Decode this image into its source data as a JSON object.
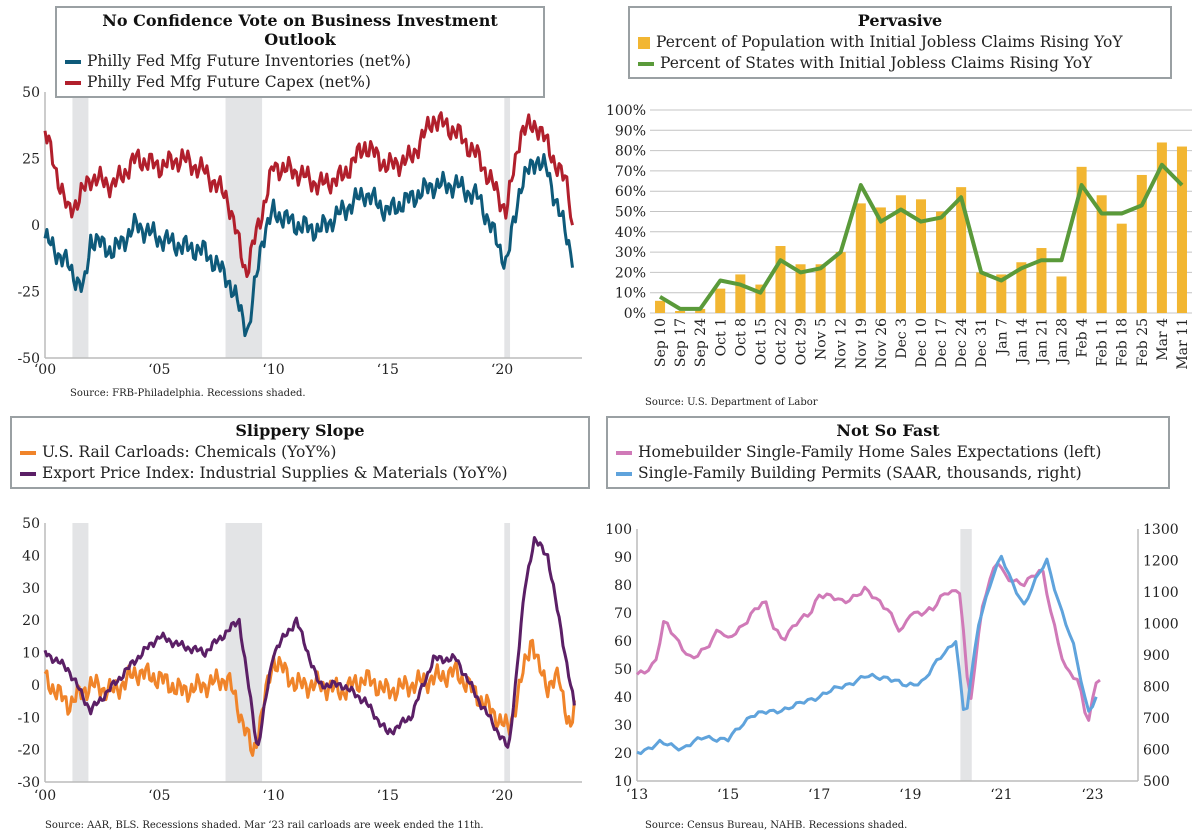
{
  "chart_data": [
    {
      "type": "line",
      "title": "No Confidence Vote on Business Investment Outlook",
      "source": "Source: FRB-Philadelphia. Recessions shaded.",
      "xlim": [
        2000,
        2023.5
      ],
      "ylim": [
        -50,
        50
      ],
      "yticks": [
        -50,
        -25,
        0,
        25,
        50
      ],
      "xticks": [
        {
          "v": 2000,
          "l": "‘00"
        },
        {
          "v": 2005,
          "l": "‘05"
        },
        {
          "v": 2010,
          "l": "‘10"
        },
        {
          "v": 2015,
          "l": "‘15"
        },
        {
          "v": 2020,
          "l": "‘20"
        }
      ],
      "recessions": [
        [
          2001.2,
          2001.9
        ],
        [
          2007.9,
          2009.5
        ],
        [
          2020.1,
          2020.35
        ]
      ],
      "series": [
        {
          "name": "Philly Fed Mfg Future Inventories (net%)",
          "color": "#0e5a7a",
          "noise": 5,
          "points": [
            [
              2000,
              -5
            ],
            [
              2001,
              -15
            ],
            [
              2001.7,
              -25
            ],
            [
              2002,
              -5
            ],
            [
              2003,
              -10
            ],
            [
              2004,
              0
            ],
            [
              2005,
              -5
            ],
            [
              2006,
              -8
            ],
            [
              2007,
              -10
            ],
            [
              2008,
              -20
            ],
            [
              2008.9,
              -40
            ],
            [
              2009.5,
              -5
            ],
            [
              2010,
              5
            ],
            [
              2011,
              0
            ],
            [
              2012,
              -2
            ],
            [
              2013,
              5
            ],
            [
              2014,
              12
            ],
            [
              2015,
              5
            ],
            [
              2016,
              10
            ],
            [
              2017,
              15
            ],
            [
              2018,
              15
            ],
            [
              2019,
              10
            ],
            [
              2020.2,
              -15
            ],
            [
              2020.8,
              15
            ],
            [
              2021.5,
              25
            ],
            [
              2022,
              20
            ],
            [
              2022.5,
              5
            ],
            [
              2023.1,
              -12
            ]
          ]
        },
        {
          "name": "Philly Fed Mfg Future Capex (net%)",
          "color": "#b11f2c",
          "noise": 5,
          "points": [
            [
              2000,
              35
            ],
            [
              2000.5,
              20
            ],
            [
              2001,
              5
            ],
            [
              2001.5,
              10
            ],
            [
              2002,
              18
            ],
            [
              2003,
              15
            ],
            [
              2004,
              25
            ],
            [
              2005,
              22
            ],
            [
              2006,
              25
            ],
            [
              2007,
              20
            ],
            [
              2008,
              10
            ],
            [
              2008.8,
              -18
            ],
            [
              2009.5,
              5
            ],
            [
              2010,
              22
            ],
            [
              2011,
              20
            ],
            [
              2012,
              15
            ],
            [
              2013,
              18
            ],
            [
              2014,
              30
            ],
            [
              2015,
              22
            ],
            [
              2016,
              25
            ],
            [
              2017,
              40
            ],
            [
              2018,
              35
            ],
            [
              2019,
              25
            ],
            [
              2020.2,
              5
            ],
            [
              2020.8,
              35
            ],
            [
              2021.5,
              38
            ],
            [
              2022,
              30
            ],
            [
              2022.5,
              20
            ],
            [
              2022.9,
              15
            ],
            [
              2023.1,
              -3
            ]
          ]
        }
      ]
    },
    {
      "type": "bar",
      "title": "Pervasive",
      "source": "Source: U.S. Department of Labor",
      "ylim": [
        0,
        100
      ],
      "yticks": [
        0,
        10,
        20,
        30,
        40,
        50,
        60,
        70,
        80,
        90,
        100
      ],
      "categories": [
        "Sep 10",
        "Sep 17",
        "Sep 24",
        "Oct 1",
        "Oct 8",
        "Oct 15",
        "Oct 22",
        "Oct 29",
        "Nov 5",
        "Nov 12",
        "Nov 19",
        "Nov 26",
        "Dec 3",
        "Dec 10",
        "Dec 17",
        "Dec 24",
        "Dec 31",
        "Jan 7",
        "Jan 14",
        "Jan 21",
        "Jan 28",
        "Feb 4",
        "Feb 11",
        "Feb 18",
        "Feb 25",
        "Mar 4",
        "Mar 11"
      ],
      "series": [
        {
          "name": "Percent of Population with Initial Jobless Claims Rising YoY",
          "color": "#f2b632",
          "values": [
            6,
            1,
            2,
            12,
            19,
            14,
            33,
            24,
            24,
            30,
            54,
            52,
            58,
            56,
            50,
            62,
            20,
            19,
            25,
            32,
            18,
            72,
            58,
            44,
            68,
            84,
            82
          ]
        },
        {
          "name": "Percent of States with Initial Jobless Claims Rising YoY",
          "color": "#5a9a3a",
          "values": [
            8,
            2,
            2,
            16,
            14,
            10,
            26,
            20,
            22,
            30,
            63,
            45,
            51,
            45,
            47,
            57,
            20,
            16,
            22,
            26,
            26,
            63,
            49,
            49,
            53,
            73,
            63
          ]
        }
      ]
    },
    {
      "type": "line",
      "title": "Slippery Slope",
      "source": "Source: AAR, BLS. Recessions shaded. Mar ‘23 rail carloads are week ended the 11th.",
      "xlim": [
        2000,
        2023.5
      ],
      "ylim": [
        -30,
        50
      ],
      "yticks": [
        -30,
        -20,
        -10,
        0,
        10,
        20,
        30,
        40,
        50
      ],
      "xticks": [
        {
          "v": 2000,
          "l": "‘00"
        },
        {
          "v": 2005,
          "l": "‘05"
        },
        {
          "v": 2010,
          "l": "‘10"
        },
        {
          "v": 2015,
          "l": "‘15"
        },
        {
          "v": 2020,
          "l": "‘20"
        }
      ],
      "recessions": [
        [
          2001.2,
          2001.9
        ],
        [
          2007.9,
          2009.5
        ],
        [
          2020.1,
          2020.35
        ]
      ],
      "series": [
        {
          "name": "U.S. Rail Carloads: Chemicals (YoY%)",
          "color": "#f0842a",
          "noise": 4,
          "points": [
            [
              2000,
              2
            ],
            [
              2001,
              -6
            ],
            [
              2002,
              0
            ],
            [
              2003,
              -2
            ],
            [
              2004,
              4
            ],
            [
              2005,
              2
            ],
            [
              2006,
              -2
            ],
            [
              2007,
              0
            ],
            [
              2008,
              2
            ],
            [
              2008.7,
              -12
            ],
            [
              2009.1,
              -22
            ],
            [
              2009.6,
              -5
            ],
            [
              2010,
              8
            ],
            [
              2011,
              0
            ],
            [
              2012,
              0
            ],
            [
              2013,
              -2
            ],
            [
              2014,
              2
            ],
            [
              2015,
              -2
            ],
            [
              2016,
              0
            ],
            [
              2017,
              2
            ],
            [
              2018,
              4
            ],
            [
              2019,
              -4
            ],
            [
              2020.3,
              -14
            ],
            [
              2020.8,
              0
            ],
            [
              2021.3,
              15
            ],
            [
              2021.6,
              5
            ],
            [
              2022,
              0
            ],
            [
              2022.5,
              2
            ],
            [
              2023,
              -14
            ],
            [
              2023.2,
              -6
            ]
          ]
        },
        {
          "name": "Export Price Index: Industrial Supplies & Materials (YoY%)",
          "color": "#5b1f66",
          "noise": 1.5,
          "points": [
            [
              2000,
              10
            ],
            [
              2001,
              5
            ],
            [
              2002,
              -8
            ],
            [
              2003,
              0
            ],
            [
              2004,
              8
            ],
            [
              2005,
              15
            ],
            [
              2006,
              12
            ],
            [
              2007,
              10
            ],
            [
              2008.5,
              20
            ],
            [
              2009.3,
              -20
            ],
            [
              2010,
              10
            ],
            [
              2011,
              20
            ],
            [
              2012,
              0
            ],
            [
              2013,
              0
            ],
            [
              2014,
              -5
            ],
            [
              2015,
              -15
            ],
            [
              2016,
              -10
            ],
            [
              2017,
              8
            ],
            [
              2018,
              8
            ],
            [
              2019,
              -5
            ],
            [
              2020.3,
              -20
            ],
            [
              2021,
              30
            ],
            [
              2021.4,
              45
            ],
            [
              2022,
              40
            ],
            [
              2022.5,
              20
            ],
            [
              2023.2,
              -8
            ]
          ]
        }
      ]
    },
    {
      "type": "line",
      "title": "Not So Fast",
      "source": "Source: Census Bureau, NAHB. Recessions shaded.",
      "xlim": [
        2013,
        2024
      ],
      "ylim": [
        10,
        100
      ],
      "y2lim": [
        500,
        1300
      ],
      "yticks": [
        10,
        20,
        30,
        40,
        50,
        60,
        70,
        80,
        90,
        100
      ],
      "y2ticks": [
        500,
        600,
        700,
        800,
        900,
        1000,
        1100,
        1200,
        1300
      ],
      "xticks": [
        {
          "v": 2013,
          "l": "‘13"
        },
        {
          "v": 2015,
          "l": "‘15"
        },
        {
          "v": 2017,
          "l": "‘17"
        },
        {
          "v": 2019,
          "l": "‘19"
        },
        {
          "v": 2021,
          "l": "‘21"
        },
        {
          "v": 2023,
          "l": "‘23"
        }
      ],
      "recessions": [
        [
          2020.1,
          2020.35
        ]
      ],
      "series": [
        {
          "name": "Homebuilder Single-Family Home Sales Expectations (left)",
          "color": "#d07ab8",
          "noise": 1.5,
          "axis": "left",
          "points": [
            [
              2013,
              48
            ],
            [
              2013.4,
              52
            ],
            [
              2013.6,
              67
            ],
            [
              2014,
              58
            ],
            [
              2014.2,
              53
            ],
            [
              2014.5,
              57
            ],
            [
              2014.8,
              65
            ],
            [
              2015,
              60
            ],
            [
              2015.3,
              65
            ],
            [
              2015.5,
              70
            ],
            [
              2015.8,
              74
            ],
            [
              2016,
              65
            ],
            [
              2016.2,
              61
            ],
            [
              2016.5,
              66
            ],
            [
              2016.8,
              70
            ],
            [
              2017,
              77
            ],
            [
              2017.5,
              74
            ],
            [
              2018,
              78
            ],
            [
              2018.5,
              72
            ],
            [
              2018.8,
              62
            ],
            [
              2019,
              70
            ],
            [
              2019.5,
              71
            ],
            [
              2019.8,
              78
            ],
            [
              2020.1,
              78
            ],
            [
              2020.3,
              35
            ],
            [
              2020.6,
              75
            ],
            [
              2020.9,
              89
            ],
            [
              2021.1,
              82
            ],
            [
              2021.5,
              81
            ],
            [
              2021.9,
              85
            ],
            [
              2022.1,
              70
            ],
            [
              2022.4,
              50
            ],
            [
              2022.7,
              45
            ],
            [
              2022.9,
              31
            ],
            [
              2023.1,
              47
            ],
            [
              2023.2,
              46
            ]
          ]
        },
        {
          "name": "Single-Family Building Permits (SAAR, thousands, right)",
          "color": "#5fa3dc",
          "noise": 10,
          "axis": "right",
          "points": [
            [
              2013,
              590
            ],
            [
              2013.5,
              620
            ],
            [
              2014,
              605
            ],
            [
              2014.5,
              640
            ],
            [
              2015,
              630
            ],
            [
              2015.5,
              710
            ],
            [
              2016,
              720
            ],
            [
              2016.5,
              740
            ],
            [
              2017,
              770
            ],
            [
              2017.5,
              800
            ],
            [
              2018,
              830
            ],
            [
              2018.5,
              830
            ],
            [
              2018.9,
              800
            ],
            [
              2019.3,
              820
            ],
            [
              2019.6,
              880
            ],
            [
              2020,
              950
            ],
            [
              2020.2,
              680
            ],
            [
              2020.5,
              1000
            ],
            [
              2020.8,
              1150
            ],
            [
              2021,
              1210
            ],
            [
              2021.2,
              1140
            ],
            [
              2021.5,
              1060
            ],
            [
              2021.8,
              1150
            ],
            [
              2022,
              1200
            ],
            [
              2022.3,
              1050
            ],
            [
              2022.6,
              920
            ],
            [
              2022.9,
              720
            ],
            [
              2023.1,
              770
            ]
          ]
        }
      ]
    }
  ]
}
